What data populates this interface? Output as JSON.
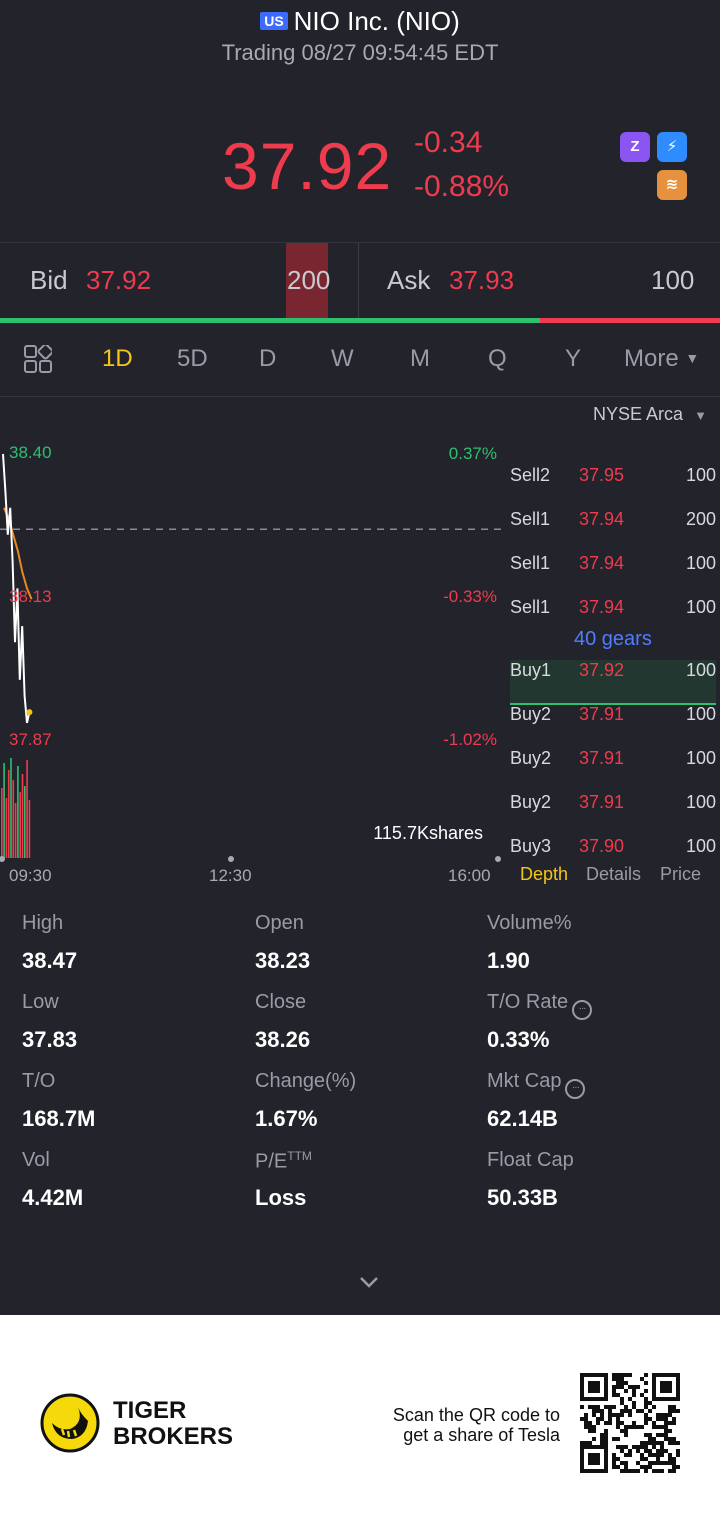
{
  "header": {
    "market_badge": "US",
    "title": "NIO Inc. (NIO)",
    "status": "Trading 08/27 09:54:45 EDT",
    "last_price": "37.92",
    "change": "-0.34",
    "change_pct": "-0.88%"
  },
  "quote": {
    "bid_label": "Bid",
    "bid_price": "37.92",
    "bid_size": "200",
    "ask_label": "Ask",
    "ask_price": "37.93",
    "ask_size": "100",
    "bid_fraction": 0.75
  },
  "tabs": [
    "1D",
    "5D",
    "D",
    "W",
    "M",
    "Q",
    "Y"
  ],
  "tab_more": "More",
  "active_tab": "1D",
  "chart": {
    "y_high": "38.40",
    "y_mid": "38.13",
    "y_low": "37.87",
    "pct_high": "0.37%",
    "pct_mid": "-0.33%",
    "pct_low": "-1.02%",
    "volume": "115.7Kshares",
    "x_labels": [
      "09:30",
      "12:30",
      "16:00"
    ]
  },
  "chart_data": {
    "type": "line",
    "series": [
      {
        "values": [
          38.4,
          38.33,
          38.25,
          38.3,
          38.2,
          38.05,
          38.15,
          37.98,
          38.08,
          37.95,
          37.9,
          37.92
        ]
      },
      {
        "values": [
          38.3,
          38.28,
          38.25,
          38.22,
          38.18,
          38.15,
          38.13
        ]
      }
    ],
    "prev_close": 38.26,
    "ylim": [
      37.87,
      38.4
    ]
  },
  "orderbook": {
    "exchange": "NYSE Arca",
    "rows": [
      {
        "side": "Sell2",
        "price": "37.95",
        "size": "100"
      },
      {
        "side": "Sell1",
        "price": "37.94",
        "size": "200"
      },
      {
        "side": "Sell1",
        "price": "37.94",
        "size": "100"
      },
      {
        "side": "Sell1",
        "price": "37.94",
        "size": "100"
      },
      {
        "side": "Buy1",
        "price": "37.92",
        "size": "100"
      },
      {
        "side": "Buy2",
        "price": "37.91",
        "size": "100"
      },
      {
        "side": "Buy2",
        "price": "37.91",
        "size": "100"
      },
      {
        "side": "Buy2",
        "price": "37.91",
        "size": "100"
      },
      {
        "side": "Buy3",
        "price": "37.90",
        "size": "100"
      }
    ],
    "gears": "40 gears",
    "tabs": [
      "Depth",
      "Details",
      "Price"
    ]
  },
  "stats": [
    {
      "label": "High",
      "value": "38.47"
    },
    {
      "label": "Open",
      "value": "38.23"
    },
    {
      "label": "Volume%",
      "value": "1.90"
    },
    {
      "label": "Low",
      "value": "37.83"
    },
    {
      "label": "Close",
      "value": "38.26"
    },
    {
      "label": "T/O Rate",
      "value": "0.33%"
    },
    {
      "label": "T/O",
      "value": "168.7M"
    },
    {
      "label": "Change(%)",
      "value": "1.67%"
    },
    {
      "label": "Mkt Cap",
      "value": "62.14B"
    },
    {
      "label": "Vol",
      "value": "4.42M"
    },
    {
      "label": "P/E",
      "value": "Loss"
    },
    {
      "label": "Float Cap",
      "value": "50.33B"
    }
  ],
  "pe_suffix": "TTM",
  "footer": {
    "brand_line1": "TIGER",
    "brand_line2": "BROKERS",
    "qr_line1": "Scan the QR code to",
    "qr_line2": "get a share of Tesla"
  },
  "colors": {
    "up": "#2fbf71",
    "down": "#ef3b4e",
    "accent": "#f5c518",
    "background": "#22232b"
  }
}
